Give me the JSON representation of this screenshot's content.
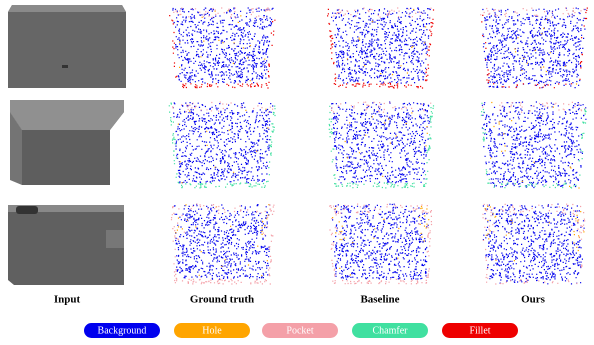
{
  "columns": [
    "Input",
    "Ground truth",
    "Baseline",
    "Ours"
  ],
  "legend": {
    "items": [
      {
        "label": "Background",
        "color": "#0000ee"
      },
      {
        "label": "Hole",
        "color": "#ffa500"
      },
      {
        "label": "Pocket",
        "color": "#f4a0a8"
      },
      {
        "label": "Chamfer",
        "color": "#40e0a0"
      },
      {
        "label": "Fillet",
        "color": "#ee0000"
      }
    ]
  }
}
